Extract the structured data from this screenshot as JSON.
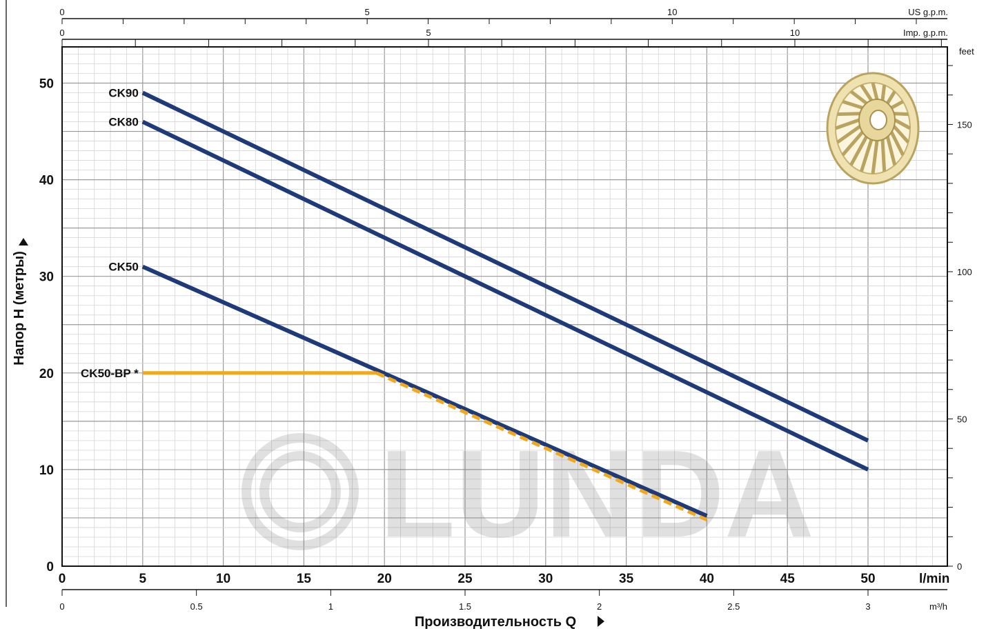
{
  "chart_data": {
    "type": "line",
    "xlabel": "Производительность Q",
    "ylabel": "Напор H (метры)",
    "x_unit": "l/min",
    "xlim": [
      0,
      55
    ],
    "ylim": [
      0,
      54
    ],
    "x_ticks": [
      0,
      5,
      10,
      15,
      20,
      25,
      30,
      35,
      40,
      45,
      50
    ],
    "y_ticks": [
      0,
      10,
      20,
      30,
      40,
      50
    ],
    "grid": true,
    "secondary_axes": {
      "us_gpm": {
        "label": "US g.p.m.",
        "ticks": [
          0,
          5,
          10
        ]
      },
      "imp_gpm": {
        "label": "Imp. g.p.m.",
        "ticks": [
          0,
          5,
          10
        ]
      },
      "feet": {
        "label": "feet",
        "ticks": [
          0,
          50,
          100,
          150
        ]
      },
      "m3h": {
        "label": "m³/h",
        "ticks": [
          "0",
          "0.5",
          "1",
          "1.5",
          "2",
          "2.5",
          "3"
        ]
      }
    },
    "series": [
      {
        "name": "CK90",
        "color": "#1f3a78",
        "x": [
          5,
          50
        ],
        "y": [
          49,
          13
        ]
      },
      {
        "name": "CK80",
        "color": "#1f3a78",
        "x": [
          5,
          50
        ],
        "y": [
          46,
          10
        ]
      },
      {
        "name": "CK50",
        "color": "#1f3a78",
        "x": [
          5,
          40
        ],
        "y": [
          31,
          5.2
        ]
      },
      {
        "name": "CK50-BP *",
        "color": "#f2a81d",
        "x": [
          5,
          19.5,
          40
        ],
        "y": [
          20,
          20,
          4.8
        ],
        "dashed_after_x": 19.5
      }
    ]
  },
  "watermark": {
    "text": "LUNDA"
  }
}
